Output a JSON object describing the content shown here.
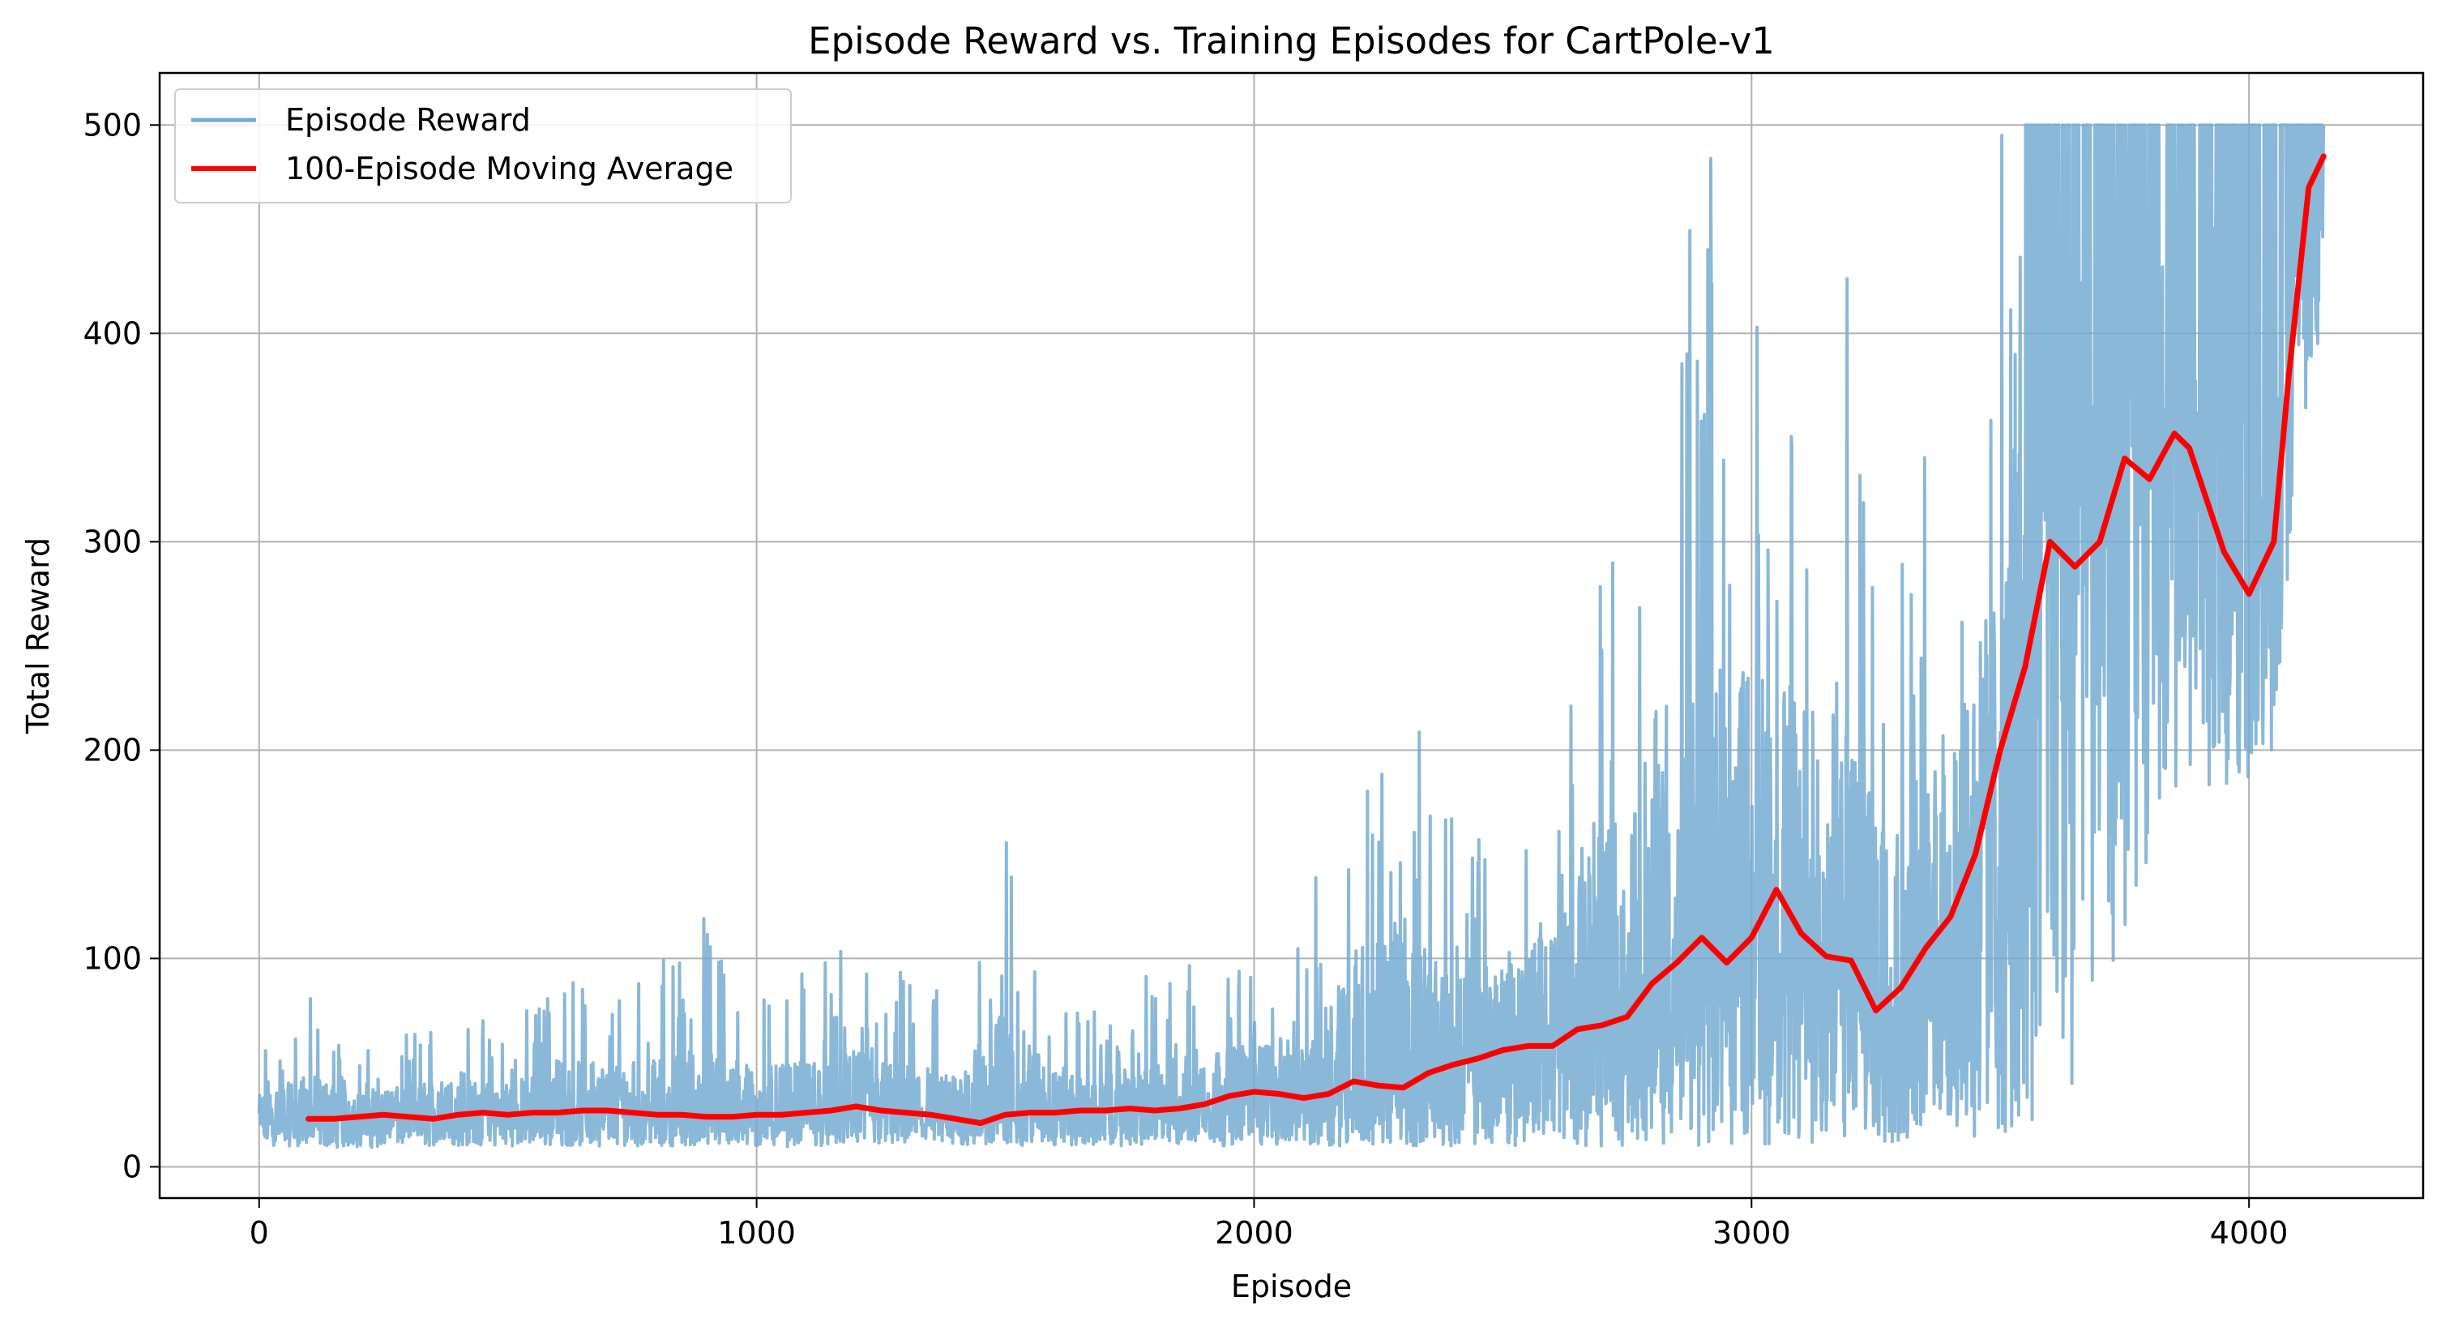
{
  "chart_data": {
    "type": "line",
    "title": "Episode Reward vs. Training Episodes for CartPole-v1",
    "xlabel": "Episode",
    "ylabel": "Total Reward",
    "xlim": [
      -200,
      4350
    ],
    "ylim": [
      -15,
      525
    ],
    "xticks": [
      0,
      1000,
      2000,
      3000,
      4000
    ],
    "xtick_labels": [
      "0",
      "1000",
      "2000",
      "3000",
      "4000"
    ],
    "yticks": [
      0,
      100,
      200,
      300,
      400,
      500
    ],
    "ytick_labels": [
      "0",
      "100",
      "200",
      "300",
      "400",
      "500"
    ],
    "grid": true,
    "legend_position": "top-left",
    "series": [
      {
        "name": "Episode Reward",
        "color": "#76abd1",
        "style": "noisy per-episode rewards; envelope sampled",
        "x": [
          0,
          100,
          200,
          300,
          400,
          500,
          600,
          700,
          800,
          900,
          1000,
          1100,
          1200,
          1300,
          1400,
          1500,
          1600,
          1700,
          1800,
          1900,
          2000,
          2100,
          2200,
          2300,
          2400,
          2500,
          2600,
          2700,
          2800,
          2900,
          3000,
          3100,
          3200,
          3300,
          3400,
          3500,
          3600,
          3700,
          3800,
          3900,
          4000,
          4050,
          4100,
          4150
        ],
        "typical": [
          22,
          22,
          24,
          25,
          22,
          26,
          25,
          27,
          24,
          25,
          24,
          25,
          28,
          25,
          21,
          26,
          27,
          26,
          28,
          29,
          36,
          34,
          40,
          36,
          48,
          55,
          60,
          68,
          90,
          100,
          108,
          103,
          92,
          82,
          110,
          180,
          280,
          300,
          340,
          330,
          300,
          280,
          430,
          485
        ],
        "low": [
          10,
          10,
          9,
          10,
          10,
          10,
          10,
          10,
          10,
          10,
          9,
          10,
          10,
          10,
          10,
          10,
          10,
          10,
          10,
          10,
          10,
          10,
          10,
          10,
          10,
          10,
          10,
          10,
          10,
          10,
          10,
          10,
          10,
          10,
          10,
          10,
          20,
          60,
          150,
          180,
          180,
          200,
          350,
          400
        ],
        "high": [
          57,
          86,
          55,
          65,
          81,
          63,
          102,
          89,
          102,
          126,
          90,
          98,
          107,
          94,
          85,
          170,
          80,
          75,
          95,
          104,
          105,
          110,
          236,
          254,
          170,
          188,
          210,
          340,
          340,
          490,
          490,
          460,
          435,
          330,
          368,
          500,
          500,
          500,
          500,
          500,
          500,
          500,
          500,
          500
        ]
      },
      {
        "name": "100-Episode Moving Average",
        "color": "#ff0000",
        "x": [
          99,
          150,
          200,
          250,
          300,
          350,
          400,
          450,
          500,
          550,
          600,
          650,
          700,
          750,
          800,
          850,
          900,
          950,
          1000,
          1050,
          1100,
          1150,
          1200,
          1250,
          1300,
          1350,
          1400,
          1450,
          1500,
          1550,
          1600,
          1650,
          1700,
          1750,
          1800,
          1850,
          1900,
          1950,
          2000,
          2050,
          2100,
          2150,
          2200,
          2250,
          2300,
          2350,
          2400,
          2450,
          2500,
          2550,
          2600,
          2650,
          2700,
          2750,
          2800,
          2850,
          2900,
          2950,
          3000,
          3050,
          3100,
          3150,
          3200,
          3250,
          3300,
          3350,
          3400,
          3450,
          3500,
          3550,
          3600,
          3650,
          3700,
          3750,
          3800,
          3850,
          3880,
          3950,
          4000,
          4050,
          4080,
          4120,
          4150
        ],
        "y": [
          23,
          23,
          24,
          25,
          24,
          23,
          25,
          26,
          25,
          26,
          26,
          27,
          27,
          26,
          25,
          25,
          24,
          24,
          25,
          25,
          26,
          27,
          29,
          27,
          26,
          25,
          23,
          21,
          25,
          26,
          26,
          27,
          27,
          28,
          27,
          28,
          30,
          34,
          36,
          35,
          33,
          35,
          41,
          39,
          38,
          45,
          49,
          52,
          56,
          58,
          58,
          66,
          68,
          72,
          88,
          98,
          110,
          98,
          110,
          133,
          112,
          101,
          99,
          75,
          86,
          105,
          120,
          150,
          200,
          240,
          300,
          288,
          300,
          340,
          330,
          352,
          345,
          295,
          275,
          300,
          380,
          470,
          485
        ]
      }
    ]
  }
}
